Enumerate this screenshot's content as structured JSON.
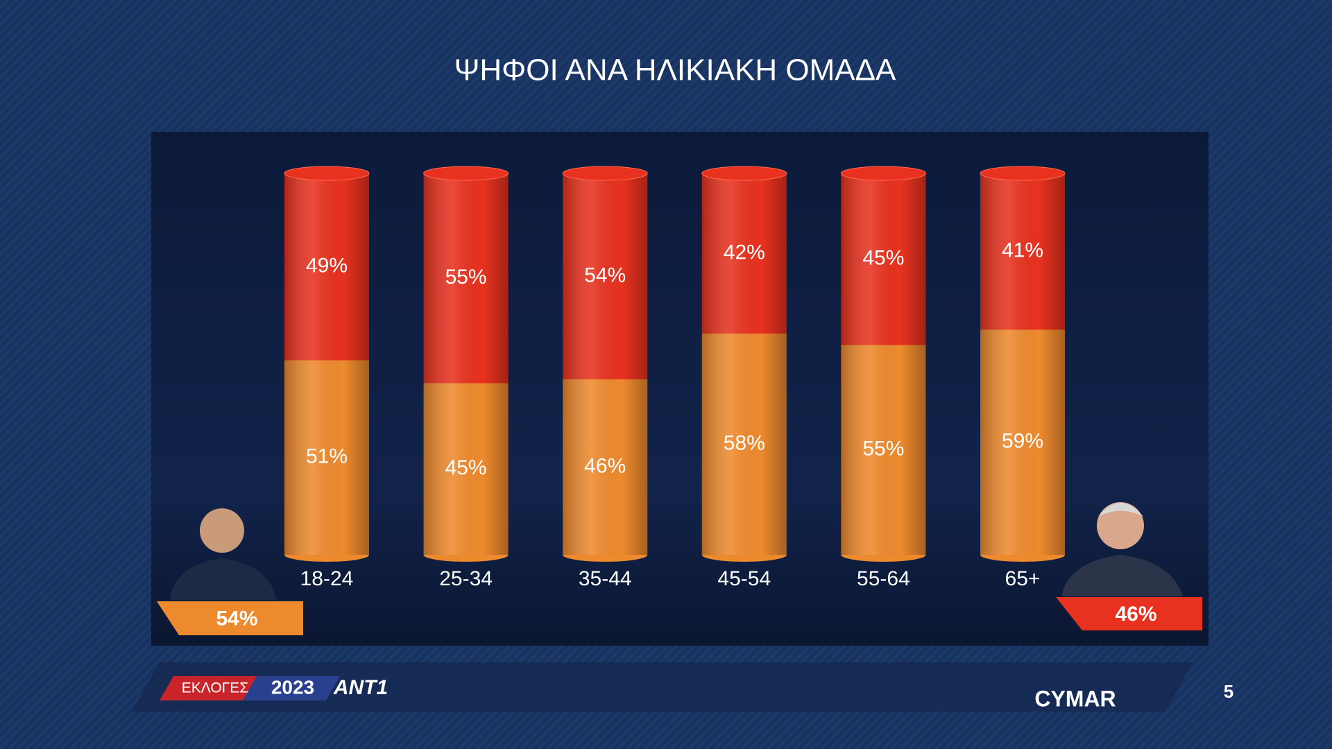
{
  "chart_data": {
    "type": "stacked_cylinder",
    "title": "ΨΗΦΟΙ ΑΝΑ ΗΛΙΚΙΑΚΗ ΟΜΑΔΑ",
    "categories": [
      "18-24",
      "25-34",
      "35-44",
      "45-54",
      "55-64",
      "65+"
    ],
    "series": [
      {
        "color": "#ee8a2e",
        "values": [
          51,
          45,
          46,
          58,
          55,
          59
        ],
        "value_labels": [
          "51%",
          "45%",
          "46%",
          "58%",
          "55%",
          "59%"
        ]
      },
      {
        "color": "#e8321f",
        "values": [
          49,
          55,
          54,
          42,
          45,
          41
        ],
        "value_labels": [
          "49%",
          "55%",
          "54%",
          "42%",
          "45%",
          "41%"
        ]
      }
    ],
    "totals": [
      {
        "color": "#ee8a2e",
        "value": 54,
        "label": "54%"
      },
      {
        "color": "#e8321f",
        "value": 46,
        "label": "46%"
      }
    ],
    "ylim": [
      0,
      100
    ]
  },
  "footer": {
    "election": "ΕΚΛΟΓΕΣ",
    "year": "2023",
    "channel": "ANT1",
    "pollster": "CYMAR",
    "page": "5"
  }
}
